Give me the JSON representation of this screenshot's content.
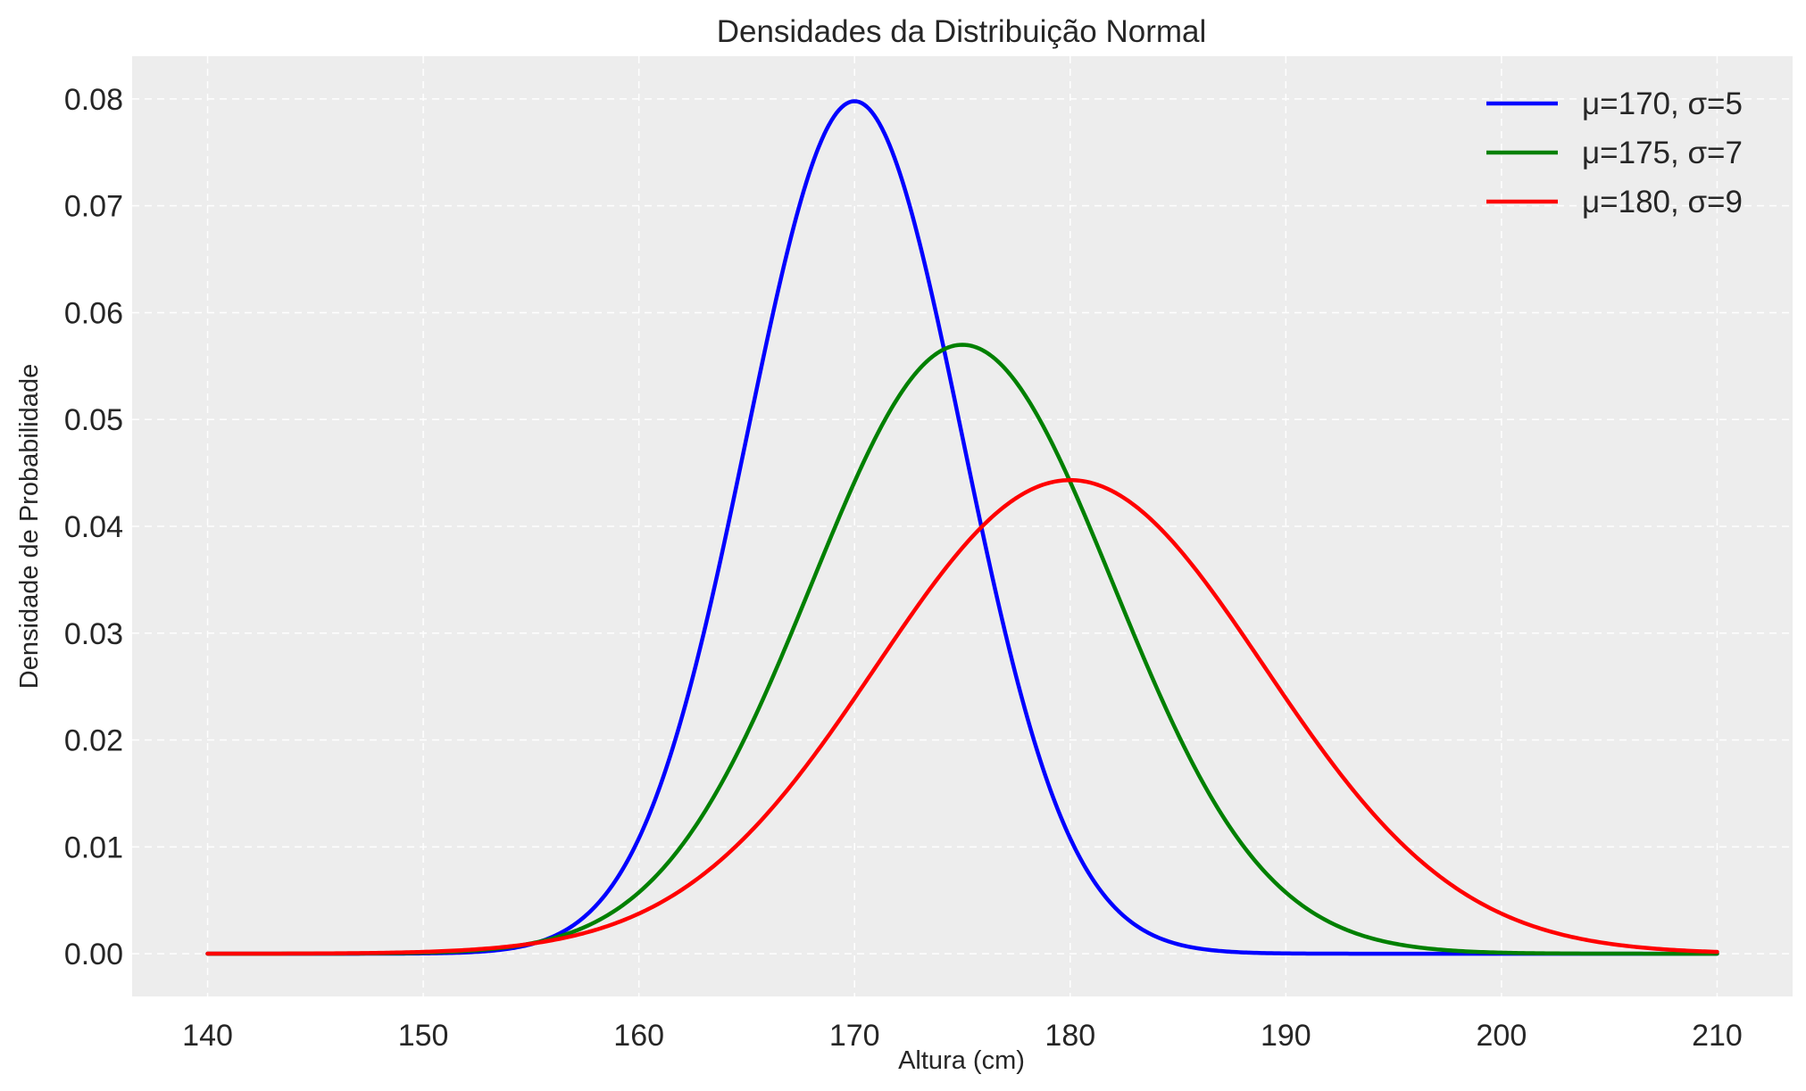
{
  "chart_data": {
    "type": "line",
    "title": "Densidades da Distribuição Normal",
    "xlabel": "Altura (cm)",
    "ylabel": "Densidade de Probabilidade",
    "xlim": [
      136.5,
      213.5
    ],
    "ylim": [
      -0.004,
      0.084
    ],
    "x_ticks": [
      140,
      150,
      160,
      170,
      180,
      190,
      200,
      210
    ],
    "x_tick_labels": [
      "140",
      "150",
      "160",
      "170",
      "180",
      "190",
      "200",
      "210"
    ],
    "y_ticks": [
      0.0,
      0.01,
      0.02,
      0.03,
      0.04,
      0.05,
      0.06,
      0.07,
      0.08
    ],
    "y_tick_labels": [
      "0.00",
      "0.01",
      "0.02",
      "0.03",
      "0.04",
      "0.05",
      "0.06",
      "0.07",
      "0.08"
    ],
    "grid": true,
    "legend_position": "top-right",
    "background_color": "#ededed",
    "x_range": [
      140,
      210
    ],
    "series": [
      {
        "name": "μ=170, σ=5",
        "mu": 170,
        "sigma": 5,
        "color": "#0000ff"
      },
      {
        "name": "μ=175, σ=7",
        "mu": 175,
        "sigma": 7,
        "color": "#008000"
      },
      {
        "name": "μ=180, σ=9",
        "mu": 180,
        "sigma": 9,
        "color": "#ff0000"
      }
    ]
  }
}
